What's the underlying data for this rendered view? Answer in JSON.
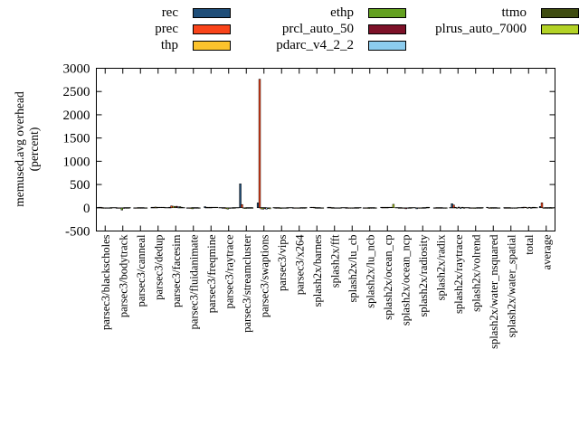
{
  "chart_data": {
    "type": "bar",
    "title": "",
    "xlabel": "",
    "ylabel_lines": [
      "memused.avg overhead",
      "(percent)"
    ],
    "ylim": [
      -500,
      3000
    ],
    "yticks": [
      3000,
      2500,
      2000,
      1500,
      1000,
      500,
      0,
      -500
    ],
    "grid": false,
    "zero_line_style": "dashed",
    "legend_position": "top",
    "legend_columns": [
      [
        "rec",
        "prec",
        "thp"
      ],
      [
        "ethp",
        "prcl_auto_50",
        "pdarc_v4_2_2"
      ],
      [
        "ttmo",
        "plrus_auto_7000"
      ]
    ],
    "categories": [
      "parsec3/blackscholes",
      "parsec3/bodytrack",
      "parsec3/canneal",
      "parsec3/dedup",
      "parsec3/facesim",
      "parsec3/fluidanimate",
      "parsec3/freqmine",
      "parsec3/raytrace",
      "parsec3/streamcluster",
      "parsec3/swaptions",
      "parsec3/vips",
      "parsec3/x264",
      "splash2x/barnes",
      "splash2x/fft",
      "splash2x/lu_cb",
      "splash2x/lu_ncb",
      "splash2x/ocean_cp",
      "splash2x/ocean_ncp",
      "splash2x/radiosity",
      "splash2x/radix",
      "splash2x/raytrace",
      "splash2x/volrend",
      "splash2x/water_nsquared",
      "splash2x/water_spatial",
      "total",
      "average"
    ],
    "series": [
      {
        "name": "rec",
        "color": "#1f4e79",
        "values": [
          2,
          -3,
          -2,
          4,
          8,
          -4,
          25,
          -6,
          515,
          105,
          -5,
          -4,
          6,
          12,
          -4,
          -5,
          5,
          -5,
          -22,
          -5,
          88,
          -6,
          6,
          -3,
          6,
          28
        ]
      },
      {
        "name": "prec",
        "color": "#f9441a",
        "values": [
          1,
          -5,
          -3,
          6,
          40,
          -6,
          8,
          -9,
          70,
          2765,
          -7,
          -6,
          4,
          5,
          -5,
          -7,
          8,
          -6,
          -6,
          -6,
          60,
          -9,
          -10,
          -5,
          14,
          106
        ]
      },
      {
        "name": "thp",
        "color": "#fcc32c",
        "values": [
          -1,
          -12,
          -2,
          16,
          34,
          -16,
          4,
          -20,
          -12,
          -25,
          -12,
          -9,
          2,
          -4,
          -8,
          -12,
          6,
          -8,
          -5,
          -9,
          7,
          -12,
          -14,
          -7,
          2,
          -3
        ]
      },
      {
        "name": "ethp",
        "color": "#63a020",
        "values": [
          -1,
          -48,
          -3,
          12,
          26,
          -22,
          3,
          -27,
          -17,
          -30,
          -16,
          -12,
          -4,
          -7,
          -11,
          -15,
          4,
          -9,
          -7,
          -11,
          -11,
          -14,
          -12,
          -8,
          -2,
          -4
        ]
      },
      {
        "name": "prcl_auto_50",
        "color": "#7d1128",
        "values": [
          -2,
          -14,
          -3,
          5,
          33,
          -9,
          3,
          -14,
          -10,
          -20,
          -10,
          -8,
          -6,
          -8,
          -9,
          -11,
          3,
          -22,
          -6,
          -8,
          15,
          -10,
          -9,
          -6,
          1,
          -3
        ]
      },
      {
        "name": "pdarc_v4_2_2",
        "color": "#8cccee",
        "values": [
          -1,
          -6,
          -2,
          4,
          20,
          -7,
          3,
          -10,
          -13,
          -28,
          -8,
          -6,
          -5,
          -6,
          -7,
          -8,
          2,
          -7,
          -5,
          -6,
          -19,
          -8,
          -7,
          -4,
          -2,
          -3
        ]
      },
      {
        "name": "ttmo",
        "color": "#3f4c11",
        "values": [
          -1,
          -4,
          -2,
          5,
          24,
          -6,
          2,
          -8,
          -9,
          -18,
          -7,
          -5,
          -3,
          -4,
          -5,
          -6,
          9,
          -5,
          8,
          -5,
          12,
          -6,
          -5,
          -3,
          1,
          -2
        ]
      },
      {
        "name": "plrus_auto_7000",
        "color": "#b3d226",
        "values": [
          -1,
          -4,
          -2,
          4,
          11,
          -5,
          2,
          -6,
          -10,
          -22,
          -6,
          -5,
          -2,
          -3,
          -4,
          -5,
          75,
          -6,
          6,
          -4,
          -9,
          -5,
          -4,
          -3,
          1,
          -2
        ]
      }
    ]
  }
}
